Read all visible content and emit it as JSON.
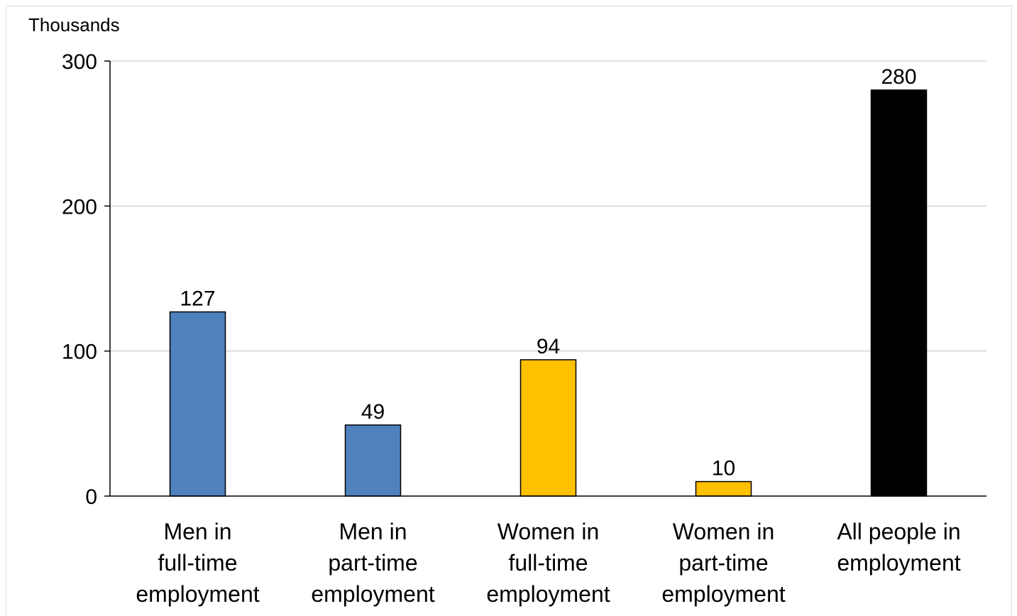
{
  "chart_data": {
    "type": "bar",
    "unit_label": "Thousands",
    "categories": [
      [
        "Men in",
        "full-time",
        "employment"
      ],
      [
        "Men in",
        "part-time",
        "employment"
      ],
      [
        "Women in",
        "full-time",
        "employment"
      ],
      [
        "Women in",
        "part-time",
        "employment"
      ],
      [
        "All people in",
        "employment"
      ]
    ],
    "values": [
      127,
      49,
      94,
      10,
      280
    ],
    "data_labels": [
      "127",
      "49",
      "94",
      "10",
      "280"
    ],
    "bar_colors": [
      "#4f81bd",
      "#4f81bd",
      "#ffc000",
      "#ffc000",
      "#000000"
    ],
    "ylim": [
      0,
      300
    ],
    "yticks": [
      0,
      100,
      200,
      300
    ],
    "ytick_labels": [
      "0",
      "100",
      "200",
      "300"
    ],
    "grid": true,
    "grid_color": "#c0c0c0",
    "axis_color": "#000000"
  }
}
